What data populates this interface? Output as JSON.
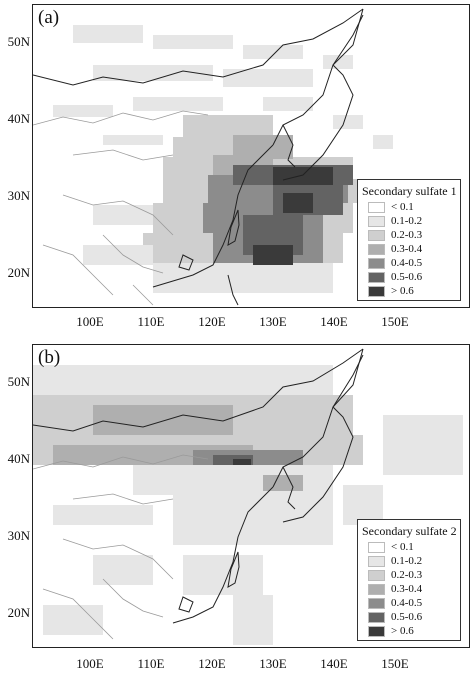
{
  "panels": [
    {
      "label": "(a)",
      "legend": {
        "title": "Secondary sulfate 1",
        "items": [
          {
            "label": "< 0.1",
            "color": "#ffffff"
          },
          {
            "label": "0.1-0.2",
            "color": "#e6e6e6"
          },
          {
            "label": "0.2-0.3",
            "color": "#cfcfcf"
          },
          {
            "label": "0.3-0.4",
            "color": "#afafaf"
          },
          {
            "label": "0.4-0.5",
            "color": "#8c8c8c"
          },
          {
            "label": "0.5-0.6",
            "color": "#636363"
          },
          {
            "label": "> 0.6",
            "color": "#3a3a3a"
          }
        ]
      },
      "lat_labels": [
        "50N",
        "40N",
        "30N",
        "20N"
      ],
      "lon_labels": [
        "100E",
        "110E",
        "120E",
        "130E",
        "140E",
        "150E"
      ]
    },
    {
      "label": "(b)",
      "legend": {
        "title": "Secondary sulfate 2",
        "items": [
          {
            "label": "< 0.1",
            "color": "#ffffff"
          },
          {
            "label": "0.1-0.2",
            "color": "#e6e6e6"
          },
          {
            "label": "0.2-0.3",
            "color": "#cfcfcf"
          },
          {
            "label": "0.3-0.4",
            "color": "#afafaf"
          },
          {
            "label": "0.4-0.5",
            "color": "#8c8c8c"
          },
          {
            "label": "0.5-0.6",
            "color": "#636363"
          },
          {
            "label": "> 0.6",
            "color": "#3a3a3a"
          }
        ]
      },
      "lat_labels": [
        "50N",
        "40N",
        "30N",
        "20N"
      ],
      "lon_labels": [
        "100E",
        "110E",
        "120E",
        "130E",
        "140E",
        "150E"
      ]
    }
  ]
}
